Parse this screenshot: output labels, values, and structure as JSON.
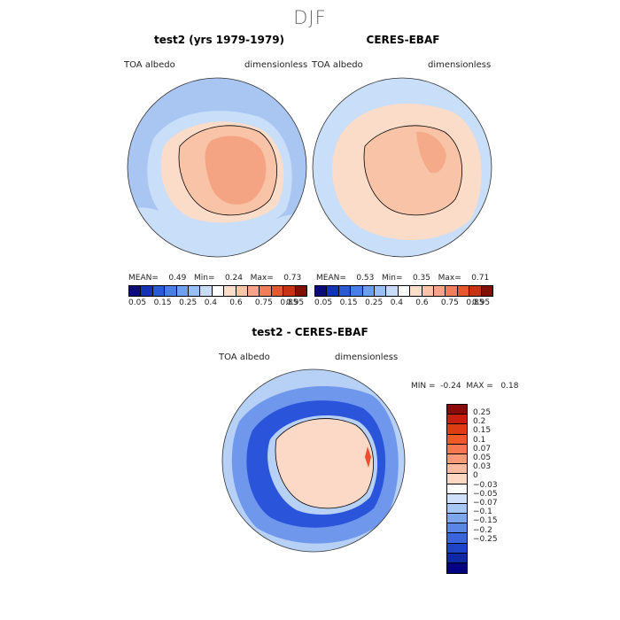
{
  "season": "DJF",
  "panel_left": {
    "title": "test2 (yrs 1979-1979)",
    "var_label": "TOA albedo",
    "units_label": "dimensionless",
    "stats": {
      "mean_label": "MEAN=",
      "mean": "0.49",
      "min_label": "Min=",
      "min": "0.24",
      "max_label": "Max=",
      "max": "0.73"
    }
  },
  "panel_right": {
    "title": "CERES-EBAF",
    "var_label": "TOA albedo",
    "units_label": "dimensionless",
    "stats": {
      "mean_label": "MEAN=",
      "mean": "0.53",
      "min_label": "Min=",
      "min": "0.35",
      "max_label": "Max=",
      "max": "0.71"
    }
  },
  "panel_diff": {
    "title": "test2 - CERES-EBAF",
    "var_label": "TOA albedo",
    "units_label": "dimensionless",
    "minmax": {
      "min_label": "MIN =",
      "min": "-0.24",
      "max_label": "MAX =",
      "max": "0.18"
    }
  },
  "colorbar_top": {
    "colors": [
      "#0a0a78",
      "#1432b4",
      "#2a5ad2",
      "#4a7ee6",
      "#6e9ef0",
      "#98bef6",
      "#c8dcfa",
      "#ffffff",
      "#fddcc8",
      "#fcc4a8",
      "#f8a488",
      "#f07e5a",
      "#e4572f",
      "#c83214",
      "#821000"
    ],
    "ticks": [
      "0.05",
      "0.15",
      "0.25",
      "0.4",
      "0.6",
      "0.75",
      "0.85",
      "0.95"
    ]
  },
  "colorbar_diff": {
    "colors_top_to_bottom": [
      "#8b0a0a",
      "#c81e10",
      "#e03c14",
      "#f05a28",
      "#f57850",
      "#f99a78",
      "#fbbba0",
      "#fdd8c4",
      "#ffffff",
      "#cfe1fa",
      "#a6c6f5",
      "#7ea6ef",
      "#5a86e6",
      "#3a64dc",
      "#1f44c8",
      "#0f28a6",
      "#000080"
    ],
    "labels_top_to_bottom": [
      "0.25",
      "0.2",
      "0.15",
      "0.1",
      "0.07",
      "0.05",
      "0.03",
      "0",
      "−0.03",
      "−0.05",
      "−0.07",
      "−0.1",
      "−0.15",
      "−0.2",
      "−0.25"
    ]
  },
  "map_colors": {
    "ocean_light": "#c9def8",
    "ocean_mid": "#a9c6f2",
    "ice_pale": "#fbdcc8",
    "ice_mid": "#f8c3a6",
    "ice_dark": "#f4a482",
    "diff_neg_strong": "#2a54da",
    "diff_neg_mid": "#6f97ec",
    "diff_neg_light": "#b7d0f6",
    "diff_pos": "#fbd9c6",
    "diff_pos_strong": "#e8502a"
  }
}
